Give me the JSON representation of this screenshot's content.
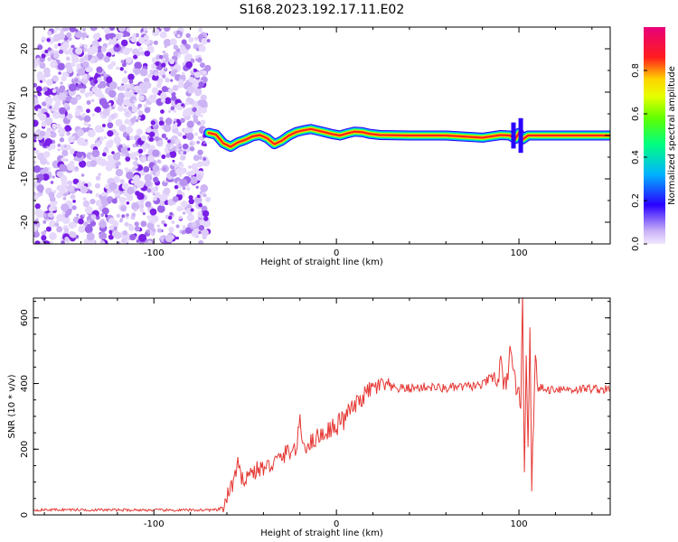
{
  "title": "S168.2023.192.17.11.E02",
  "colors": {
    "snr_line": "#e53935",
    "scatter": "#7a1fe6",
    "colorbar": [
      "#c9b1f7",
      "#2a00ff",
      "#00b3ff",
      "#00ff55",
      "#c8ff00",
      "#ffd400",
      "#ff1d1d",
      "#e8007a"
    ]
  },
  "chart_data": [
    {
      "type": "heatmap",
      "title": "S168.2023.192.17.11.E02",
      "xlabel": "Height of straight line (km)",
      "ylabel": "Frequency (Hz)",
      "xlim": [
        -166,
        150
      ],
      "ylim": [
        -25,
        25
      ],
      "xticks": [
        -100,
        0,
        100
      ],
      "yticks": [
        -20,
        -10,
        0,
        10,
        20
      ],
      "noise_region": {
        "x_range": [
          -166,
          -70
        ],
        "y_range": [
          -25,
          25
        ],
        "color": "purple"
      },
      "ridge": {
        "x": [
          -70,
          -66,
          -62,
          -58,
          -54,
          -50,
          -46,
          -42,
          -38,
          -34,
          -30,
          -26,
          -22,
          -18,
          -14,
          -10,
          -6,
          -2,
          2,
          6,
          10,
          14,
          18,
          24,
          40,
          60,
          80,
          90,
          95,
          98,
          100,
          102,
          105,
          110,
          130,
          150
        ],
        "y": [
          0.6,
          0.2,
          -1.8,
          -2.6,
          -1.6,
          -1.0,
          -0.2,
          0.1,
          -0.6,
          -2.0,
          -1.2,
          0.0,
          0.8,
          1.2,
          1.5,
          1.1,
          0.7,
          0.3,
          0.0,
          0.5,
          0.9,
          0.8,
          0.4,
          0.1,
          0.0,
          0.0,
          -0.5,
          0.1,
          0.0,
          -0.8,
          0.6,
          -0.9,
          0.0,
          0.0,
          0.0,
          0.0
        ]
      },
      "colorbar": {
        "label": "Normalized spectral amplitude",
        "ticks": [
          "0.0",
          "0.2",
          "0.4",
          "0.6",
          "0.8"
        ]
      }
    },
    {
      "type": "line",
      "xlabel": "Height of straight line (km)",
      "ylabel": "SNR (10 * v/v)",
      "xlim": [
        -166,
        150
      ],
      "ylim": [
        0,
        660
      ],
      "xticks": [
        -100,
        0,
        100
      ],
      "yticks": [
        0,
        200,
        400,
        600
      ],
      "series": [
        {
          "x": [
            -166,
            -150,
            -130,
            -110,
            -90,
            -75,
            -65,
            -62,
            -60,
            -58,
            -56,
            -54,
            -52,
            -50,
            -46,
            -42,
            -38,
            -34,
            -30,
            -26,
            -22,
            -20,
            -18,
            -14,
            -10,
            -6,
            -2,
            0,
            2,
            4,
            6,
            8,
            10,
            14,
            18,
            22,
            26,
            30,
            40,
            50,
            60,
            70,
            80,
            85,
            88,
            90,
            92,
            95,
            98,
            100,
            101,
            102,
            103,
            104,
            105,
            106,
            107,
            108,
            109,
            110,
            115,
            120,
            130,
            140,
            150
          ],
          "y": [
            15,
            16,
            15,
            15,
            14,
            15,
            15,
            25,
            50,
            80,
            110,
            150,
            100,
            120,
            130,
            140,
            145,
            160,
            175,
            195,
            200,
            280,
            210,
            220,
            240,
            250,
            270,
            250,
            300,
            280,
            315,
            320,
            330,
            355,
            380,
            390,
            395,
            385,
            385,
            390,
            385,
            390,
            395,
            420,
            400,
            460,
            380,
            480,
            390,
            420,
            300,
            660,
            130,
            510,
            200,
            600,
            110,
            250,
            480,
            390,
            380,
            385,
            382,
            385,
            380
          ]
        }
      ]
    }
  ]
}
